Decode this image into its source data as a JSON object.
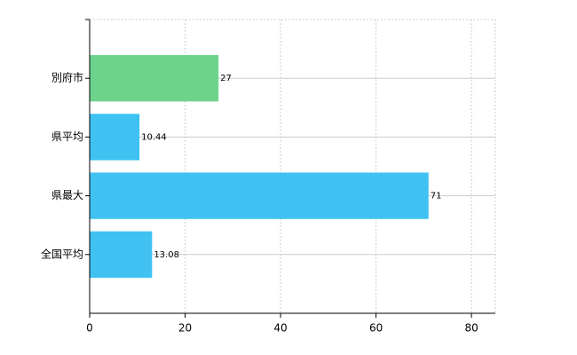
{
  "chart_data": {
    "type": "hbar",
    "categories": [
      "別府市",
      "県平均",
      "県最大",
      "全国平均"
    ],
    "values": [
      27,
      10.44,
      71,
      13.08
    ],
    "colors": [
      "#6dd38b",
      "#3fc2f2",
      "#3fc2f2",
      "#3fc2f2"
    ],
    "xlim": [
      0,
      85
    ],
    "xticks": [
      0,
      20,
      40,
      60,
      80
    ],
    "grid": true
  }
}
